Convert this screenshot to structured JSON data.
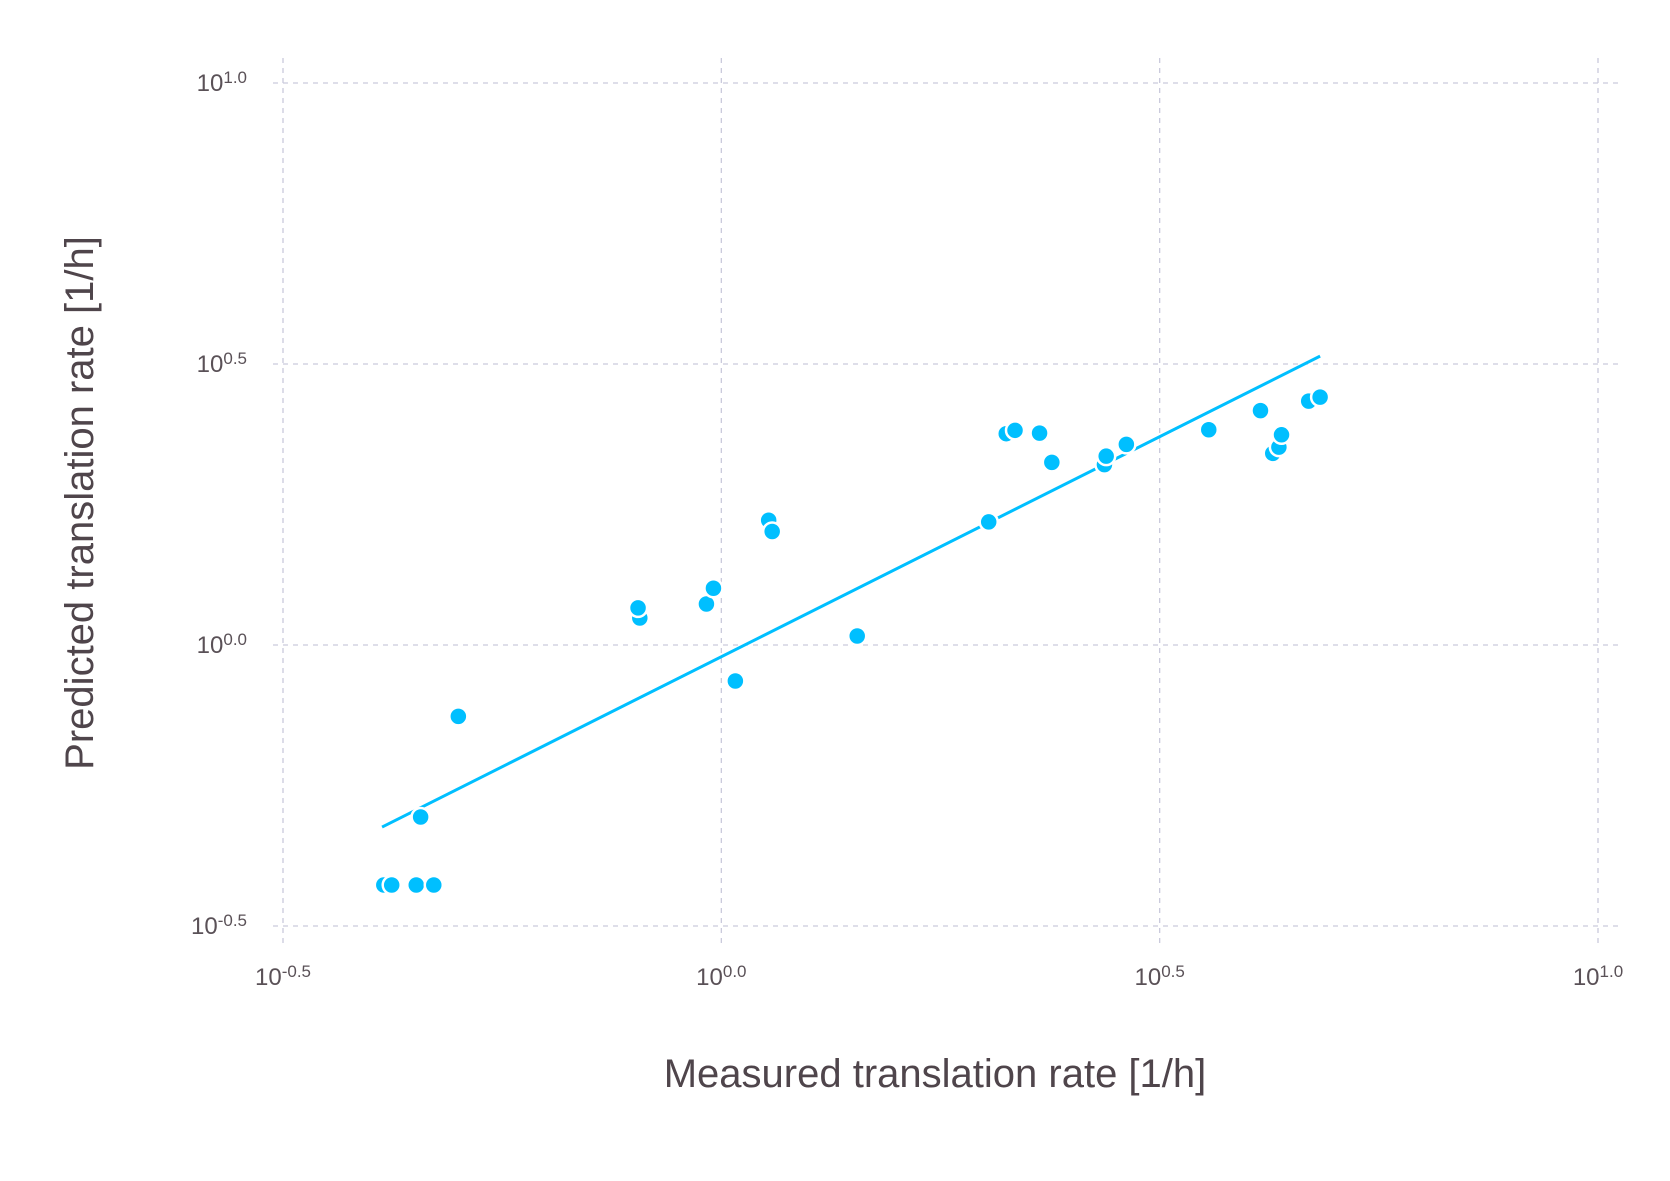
{
  "chart_data": {
    "type": "scatter",
    "xlabel": "Measured translation rate [1/h]",
    "ylabel": "Predicted translation rate [1/h]",
    "xscale": "log10",
    "yscale": "log10",
    "xlim_log10": [
      -0.5,
      1.0
    ],
    "ylim_log10": [
      -0.5,
      1.0
    ],
    "grid": true,
    "x_ticks": [
      {
        "base": "10",
        "exp": "-0.5"
      },
      {
        "base": "10",
        "exp": "0.0"
      },
      {
        "base": "10",
        "exp": "0.5"
      },
      {
        "base": "10",
        "exp": "1.0"
      }
    ],
    "y_ticks": [
      {
        "base": "10",
        "exp": "-0.5"
      },
      {
        "base": "10",
        "exp": "0.0"
      },
      {
        "base": "10",
        "exp": "0.5"
      },
      {
        "base": "10",
        "exp": "1.0"
      }
    ],
    "x_tick_values_log10": [
      -0.5,
      0.0,
      0.5,
      1.0
    ],
    "y_tick_values_log10": [
      -0.5,
      0.0,
      0.5,
      1.0
    ],
    "point_color": "#00bfff",
    "line_color": "#00bfff",
    "points_log10": [
      {
        "x": -0.385,
        "y": -0.427
      },
      {
        "x": -0.376,
        "y": -0.427
      },
      {
        "x": -0.348,
        "y": -0.427
      },
      {
        "x": -0.328,
        "y": -0.427
      },
      {
        "x": -0.343,
        "y": -0.306
      },
      {
        "x": -0.3,
        "y": -0.127
      },
      {
        "x": -0.093,
        "y": 0.048
      },
      {
        "x": -0.095,
        "y": 0.066
      },
      {
        "x": -0.017,
        "y": 0.073
      },
      {
        "x": -0.009,
        "y": 0.101
      },
      {
        "x": 0.016,
        "y": -0.064
      },
      {
        "x": 0.054,
        "y": 0.222
      },
      {
        "x": 0.058,
        "y": 0.202
      },
      {
        "x": 0.155,
        "y": 0.016
      },
      {
        "x": 0.305,
        "y": 0.219
      },
      {
        "x": 0.325,
        "y": 0.376
      },
      {
        "x": 0.335,
        "y": 0.382
      },
      {
        "x": 0.363,
        "y": 0.377
      },
      {
        "x": 0.377,
        "y": 0.325
      },
      {
        "x": 0.437,
        "y": 0.321
      },
      {
        "x": 0.439,
        "y": 0.336
      },
      {
        "x": 0.462,
        "y": 0.357
      },
      {
        "x": 0.556,
        "y": 0.383
      },
      {
        "x": 0.615,
        "y": 0.417
      },
      {
        "x": 0.629,
        "y": 0.341
      },
      {
        "x": 0.636,
        "y": 0.352
      },
      {
        "x": 0.639,
        "y": 0.374
      },
      {
        "x": 0.67,
        "y": 0.434
      },
      {
        "x": 0.683,
        "y": 0.441
      }
    ],
    "fit_line_log10": [
      {
        "x": -0.387,
        "y": -0.324
      },
      {
        "x": 0.683,
        "y": 0.514
      }
    ]
  }
}
